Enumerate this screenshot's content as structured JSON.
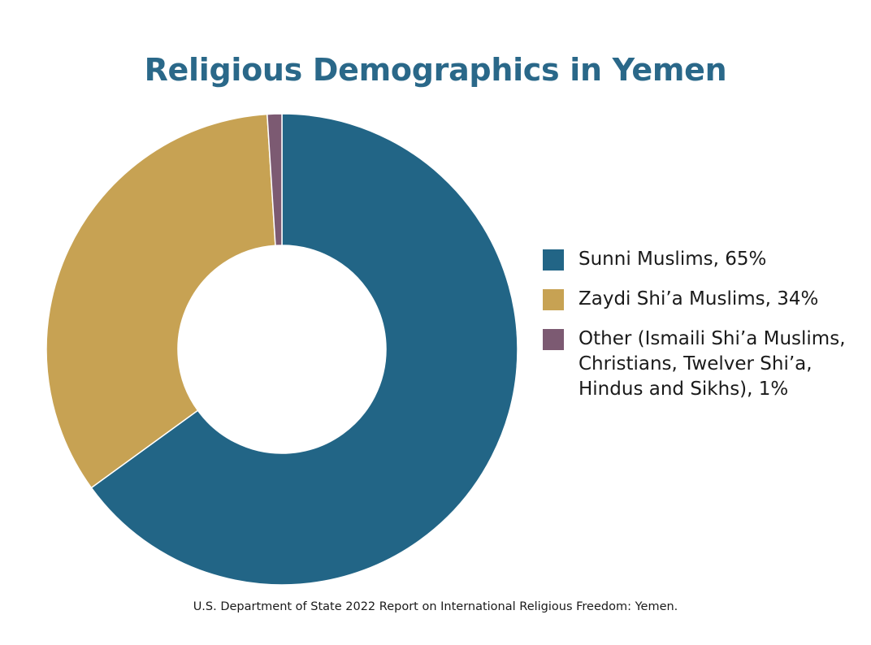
{
  "chart_data": {
    "type": "pie",
    "title": "Religious Demographics in Yemen",
    "categories": [
      "Sunni Muslims",
      "Zaydi Shi’a Muslims",
      "Other (Ismaili Shi’a Muslims, Christians, Twelver Shi’a, Hindus and Sikhs)"
    ],
    "values": [
      65,
      34,
      1
    ],
    "colors": [
      "#226586",
      "#c7a253",
      "#7c5a72"
    ],
    "legend": [
      {
        "label": "Sunni Muslims, 65%",
        "color": "#226586"
      },
      {
        "label": "Zaydi Shi’a Muslims, 34%",
        "color": "#c7a253"
      },
      {
        "label": "Other (Ismaili Shi’a Muslims, Christians, Twelver Shi’a, Hindus and Sikhs), 1%",
        "color": "#7c5a72"
      }
    ],
    "legend_position": "right",
    "donut": true
  },
  "source": "U.S. Department of State 2022 Report on International Religious Freedom: Yemen."
}
